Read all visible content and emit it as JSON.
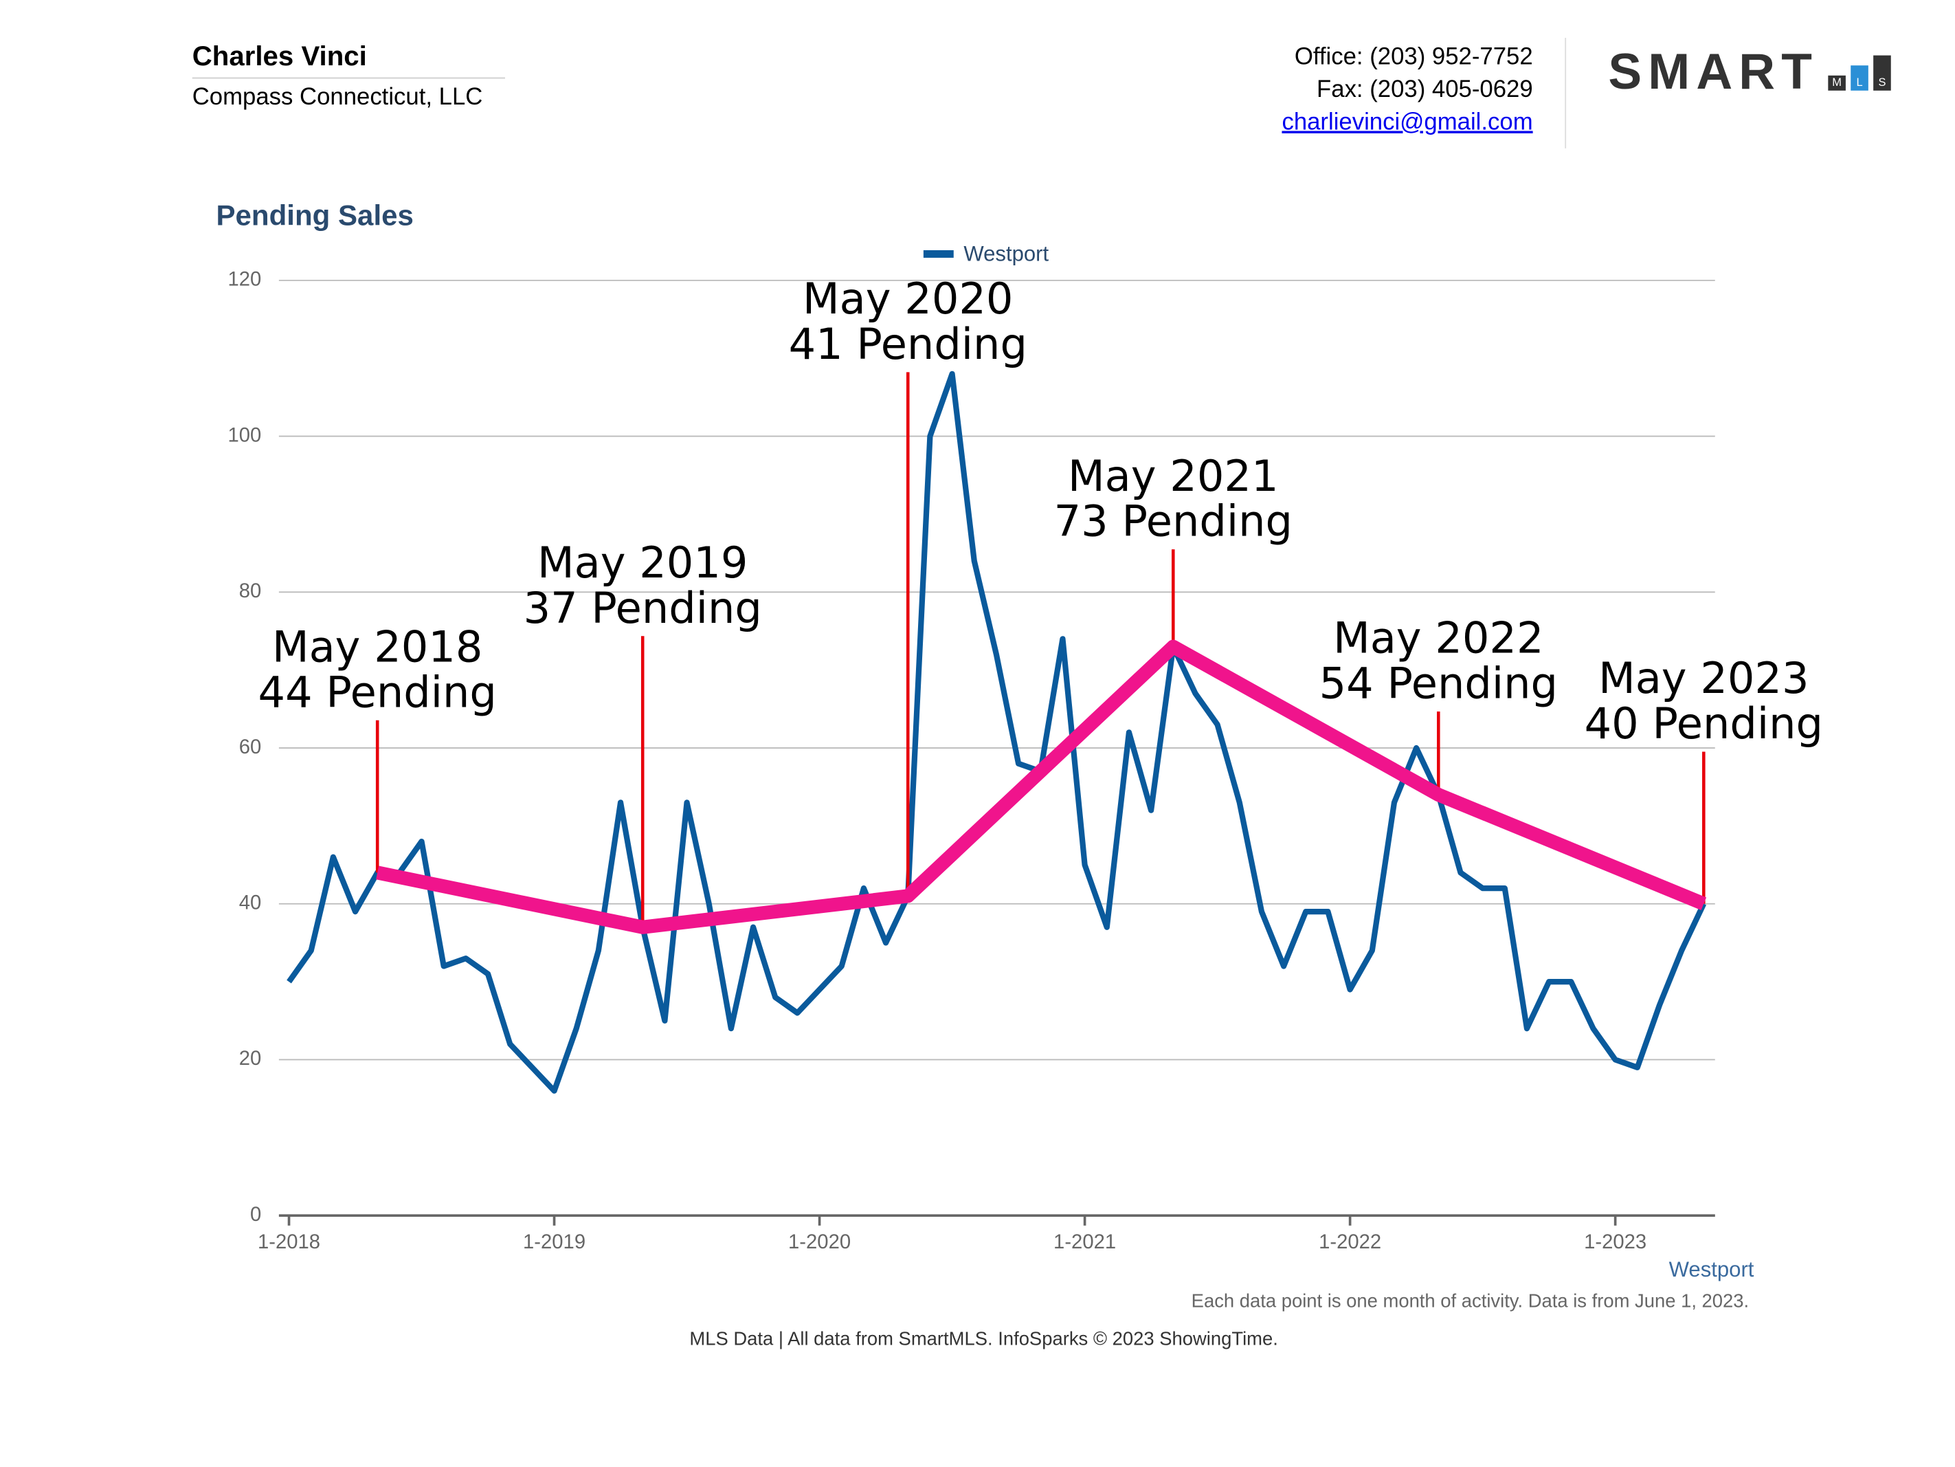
{
  "header": {
    "agent_name": "Charles Vinci",
    "company": "Compass Connecticut, LLC",
    "office": "Office: (203) 952-7752",
    "fax": "Fax: (203) 405-0629",
    "email": "charlievinci@gmail.com",
    "logo_main": "SMART",
    "logo_sub": [
      "M",
      "L",
      "S"
    ]
  },
  "chart_data": {
    "type": "line",
    "title": "Pending Sales",
    "x_axis_label": "Westport",
    "categories": [
      "1-2018",
      null,
      null,
      null,
      null,
      null,
      null,
      null,
      null,
      null,
      null,
      null,
      "1-2019",
      null,
      null,
      null,
      null,
      null,
      null,
      null,
      null,
      null,
      null,
      null,
      "1-2020",
      null,
      null,
      null,
      null,
      null,
      null,
      null,
      null,
      null,
      null,
      null,
      "1-2021",
      null,
      null,
      null,
      null,
      null,
      null,
      null,
      null,
      null,
      null,
      null,
      "1-2022",
      null,
      null,
      null,
      null,
      null,
      null,
      null,
      null,
      null,
      null,
      null,
      "1-2023",
      null,
      null,
      null,
      null
    ],
    "series": [
      {
        "name": "Westport",
        "color": "#0a5a9c",
        "values": [
          30,
          34,
          46,
          39,
          44,
          44,
          48,
          32,
          33,
          31,
          22,
          19,
          16,
          24,
          34,
          53,
          37,
          25,
          53,
          40,
          24,
          37,
          28,
          26,
          29,
          32,
          42,
          35,
          41,
          100,
          108,
          84,
          72,
          58,
          57,
          74,
          45,
          37,
          62,
          52,
          73,
          67,
          63,
          53,
          39,
          32,
          39,
          39,
          29,
          34,
          53,
          60,
          54,
          44,
          42,
          42,
          24,
          30,
          30,
          24,
          20,
          19,
          27,
          34,
          40
        ]
      }
    ],
    "ylim": [
      0,
      120
    ],
    "yticks": [
      0,
      20,
      40,
      60,
      80,
      100,
      120
    ],
    "grid": true,
    "legend": "top",
    "trend_color": "#f0148c",
    "annotation_line_color": "#e8000b",
    "annotations": [
      {
        "x": 4,
        "value": 44,
        "lines": [
          "May 2018",
          "44 Pending"
        ]
      },
      {
        "x": 16,
        "value": 37,
        "lines": [
          "May 2019",
          "37 Pending"
        ]
      },
      {
        "x": 28,
        "value": 41,
        "lines": [
          "May 2020",
          "41 Pending"
        ]
      },
      {
        "x": 40,
        "value": 73,
        "lines": [
          "May 2021",
          "73 Pending"
        ]
      },
      {
        "x": 52,
        "value": 54,
        "lines": [
          "May 2022",
          "54 Pending"
        ]
      },
      {
        "x": 64,
        "value": 40,
        "lines": [
          "May 2023",
          "40 Pending"
        ]
      }
    ],
    "note": "Each data point is one month of activity. Data is from June 1, 2023."
  },
  "footer": "MLS Data | All data from SmartMLS. InfoSparks © 2023 ShowingTime."
}
